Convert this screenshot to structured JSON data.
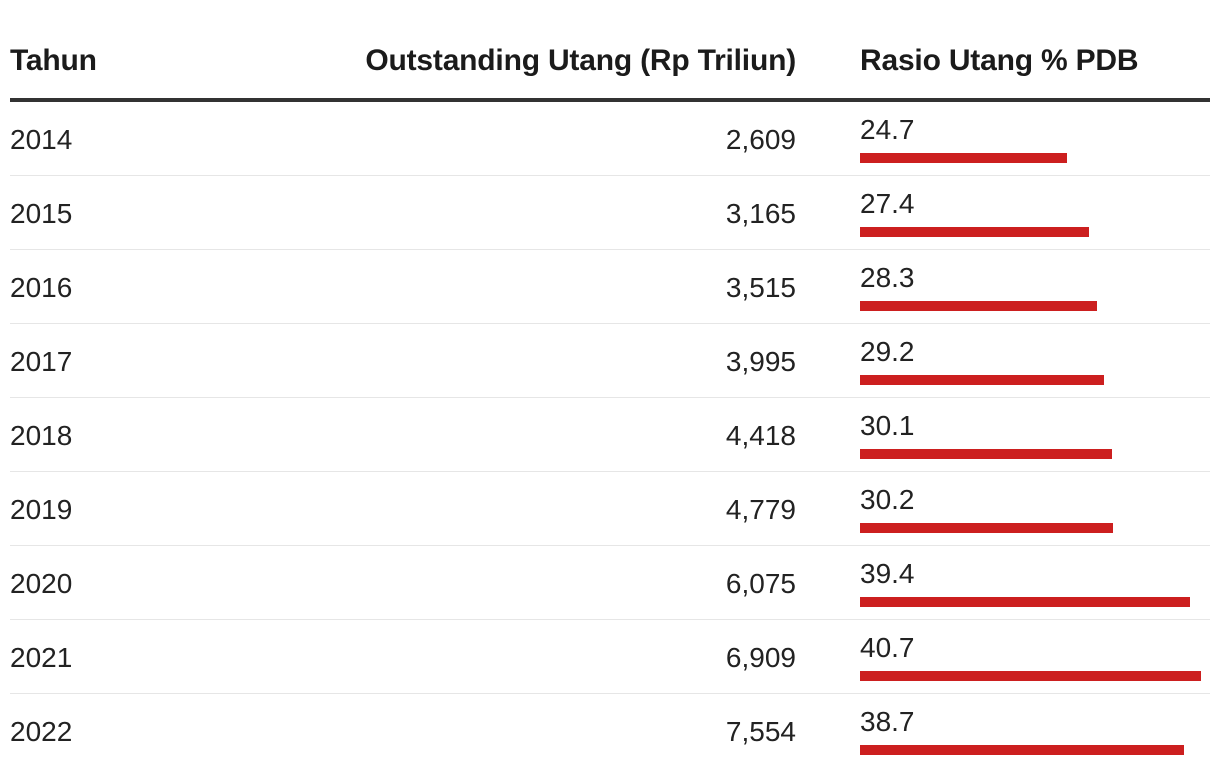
{
  "chart_data": {
    "type": "table",
    "columns": [
      "Tahun",
      "Outstanding Utang (Rp Triliun)",
      "Rasio Utang % PDB"
    ],
    "bar_color": "#cc1f1f",
    "bar_max": 41.8,
    "rows": [
      {
        "year": "2014",
        "debt": "2,609",
        "ratio": "24.7",
        "ratio_value": 24.7
      },
      {
        "year": "2015",
        "debt": "3,165",
        "ratio": "27.4",
        "ratio_value": 27.4
      },
      {
        "year": "2016",
        "debt": "3,515",
        "ratio": "28.3",
        "ratio_value": 28.3
      },
      {
        "year": "2017",
        "debt": "3,995",
        "ratio": "29.2",
        "ratio_value": 29.2
      },
      {
        "year": "2018",
        "debt": "4,418",
        "ratio": "30.1",
        "ratio_value": 30.1
      },
      {
        "year": "2019",
        "debt": "4,779",
        "ratio": "30.2",
        "ratio_value": 30.2
      },
      {
        "year": "2020",
        "debt": "6,075",
        "ratio": "39.4",
        "ratio_value": 39.4
      },
      {
        "year": "2021",
        "debt": "6,909",
        "ratio": "40.7",
        "ratio_value": 40.7
      },
      {
        "year": "2022",
        "debt": "7,554",
        "ratio": "38.7",
        "ratio_value": 38.7
      }
    ]
  }
}
